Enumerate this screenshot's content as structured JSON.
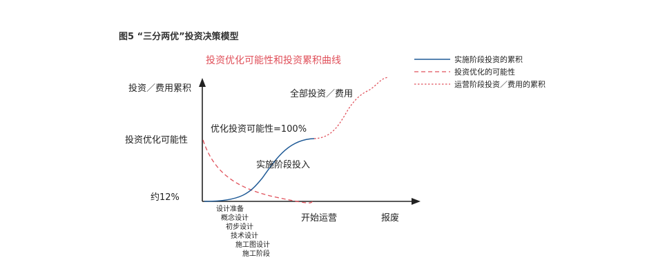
{
  "figure": {
    "title": "图5 “三分两优”投资决策模型",
    "subtitle": "投资优化可能性和投资累积曲线"
  },
  "legend": {
    "items": [
      {
        "label": "实施阶段投资的累积",
        "color": "#1f5a96",
        "style": "solid"
      },
      {
        "label": "投资优化的可能性",
        "color": "#e0505a",
        "style": "dashed"
      },
      {
        "label": "运营阶段投资／费用的累积",
        "color": "#e0505a",
        "style": "dotted"
      }
    ]
  },
  "axes": {
    "y_label_top": "投资／费用累积",
    "y_label_mid": "投资优化可能性",
    "y_label_low": "约12%",
    "x_label_operation": "开始运营",
    "x_label_scrap": "报废"
  },
  "annotations": {
    "optimization_100": "优化投资可能性=100%",
    "implementation": "实施阶段投入",
    "total": "全部投资／费用"
  },
  "phases": [
    "设计准备",
    "概念设计",
    "初步设计",
    "技术设计",
    "施工图设计",
    "施工阶段"
  ],
  "colors": {
    "axis": "#222222",
    "implementation": "#1f5a96",
    "optimization": "#e0505a",
    "operation": "#e0505a"
  }
}
